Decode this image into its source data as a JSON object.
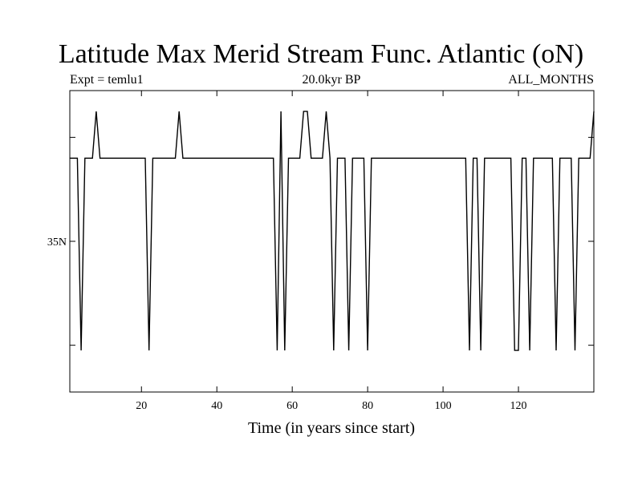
{
  "header": {
    "title": "Latitude Max Merid Stream Func. Atlantic (oN)",
    "expt": "Expt = temlu1",
    "period": "20.0kyr BP",
    "months": "ALL_MONTHS"
  },
  "chart_data": {
    "type": "line",
    "title": "Latitude Max Merid Stream Func. Atlantic (oN)",
    "xlabel": "Time (in years since start)",
    "ylabel": "",
    "xlim": [
      1,
      140
    ],
    "ylim": [
      27.75,
      42.25
    ],
    "x_ticks": [
      20,
      40,
      60,
      80,
      100,
      120
    ],
    "y_label_ticks": [
      {
        "value": 35,
        "label": "35N"
      }
    ],
    "y_minor_ticks": [
      30,
      40,
      30,
      35
    ],
    "grid": false,
    "legend": "none",
    "series": [
      {
        "color": "#000000",
        "points": [
          [
            1,
            39
          ],
          [
            3,
            39
          ],
          [
            4,
            29.75
          ],
          [
            5,
            39
          ],
          [
            7,
            39
          ],
          [
            8,
            41.25
          ],
          [
            9,
            39
          ],
          [
            21,
            39
          ],
          [
            22,
            29.75
          ],
          [
            23,
            39
          ],
          [
            29,
            39
          ],
          [
            30,
            41.25
          ],
          [
            31,
            39
          ],
          [
            55,
            39
          ],
          [
            56,
            29.75
          ],
          [
            57,
            41.25
          ],
          [
            58,
            29.75
          ],
          [
            59,
            39
          ],
          [
            62,
            39
          ],
          [
            63,
            41.25
          ],
          [
            64,
            41.25
          ],
          [
            65,
            39
          ],
          [
            68,
            39
          ],
          [
            69,
            41.25
          ],
          [
            70,
            39
          ],
          [
            71,
            29.75
          ],
          [
            72,
            39
          ],
          [
            74,
            39
          ],
          [
            75,
            29.75
          ],
          [
            76,
            39
          ],
          [
            79,
            39
          ],
          [
            80,
            29.75
          ],
          [
            81,
            39
          ],
          [
            106,
            39
          ],
          [
            107,
            29.75
          ],
          [
            108,
            39
          ],
          [
            109,
            39
          ],
          [
            110,
            29.75
          ],
          [
            111,
            39
          ],
          [
            118,
            39
          ],
          [
            119,
            29.75
          ],
          [
            120,
            29.75
          ],
          [
            121,
            39
          ],
          [
            122,
            39
          ],
          [
            123,
            29.75
          ],
          [
            124,
            39
          ],
          [
            129,
            39
          ],
          [
            130,
            29.75
          ],
          [
            131,
            39
          ],
          [
            134,
            39
          ],
          [
            135,
            29.75
          ],
          [
            136,
            39
          ],
          [
            139,
            39
          ],
          [
            140,
            41.25
          ]
        ]
      }
    ]
  }
}
